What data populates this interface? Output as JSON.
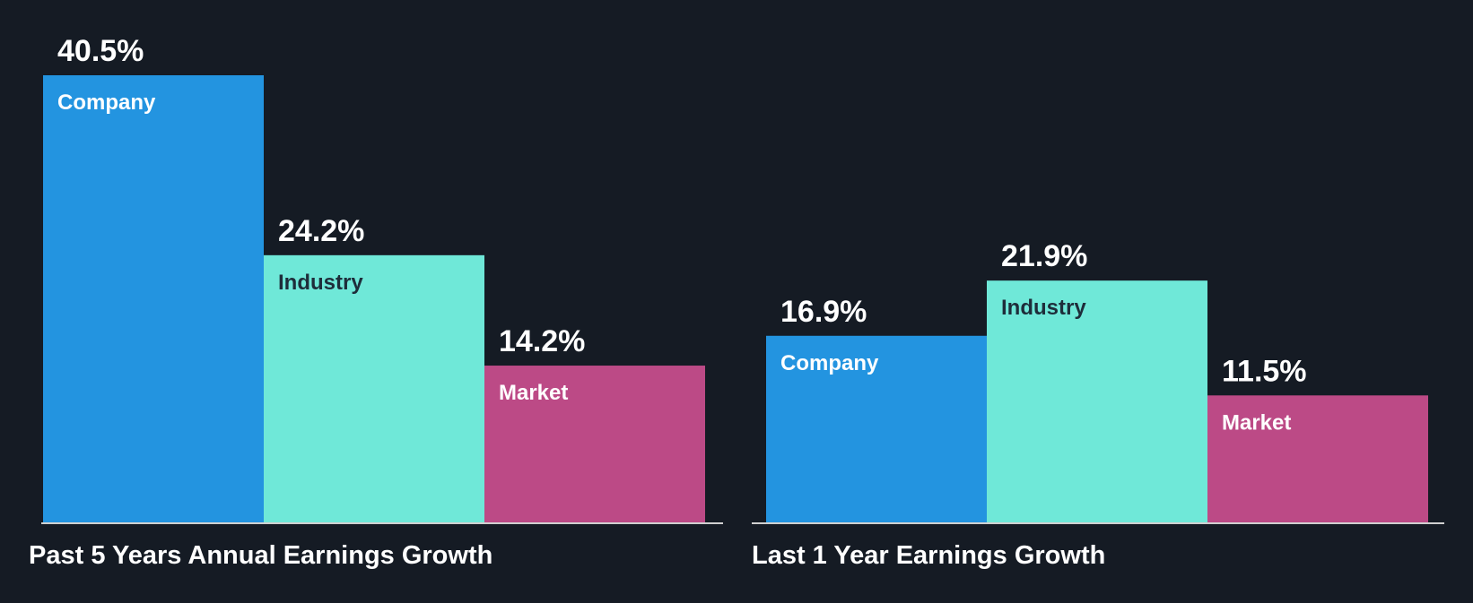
{
  "colors": {
    "background": "#151b24",
    "baseline": "#d0d0d0",
    "value_text": "#ffffff"
  },
  "chart_data": [
    {
      "type": "bar",
      "title": "Past 5 Years Annual Earnings Growth",
      "categories": [
        "Company",
        "Industry",
        "Market"
      ],
      "values": [
        40.5,
        24.2,
        14.2
      ],
      "value_labels": [
        "40.5%",
        "24.2%",
        "14.2%"
      ],
      "colors": [
        "#2394e0",
        "#6fe8d8",
        "#bc4a86"
      ],
      "label_colors": [
        "#ffffff",
        "#1e2d3a",
        "#ffffff"
      ],
      "ylim": [
        0,
        40.5
      ]
    },
    {
      "type": "bar",
      "title": "Last 1 Year Earnings Growth",
      "categories": [
        "Company",
        "Industry",
        "Market"
      ],
      "values": [
        16.9,
        21.9,
        11.5
      ],
      "value_labels": [
        "16.9%",
        "21.9%",
        "11.5%"
      ],
      "colors": [
        "#2394e0",
        "#6fe8d8",
        "#bc4a86"
      ],
      "label_colors": [
        "#ffffff",
        "#1e2d3a",
        "#ffffff"
      ],
      "ylim": [
        0,
        40.5
      ]
    }
  ]
}
